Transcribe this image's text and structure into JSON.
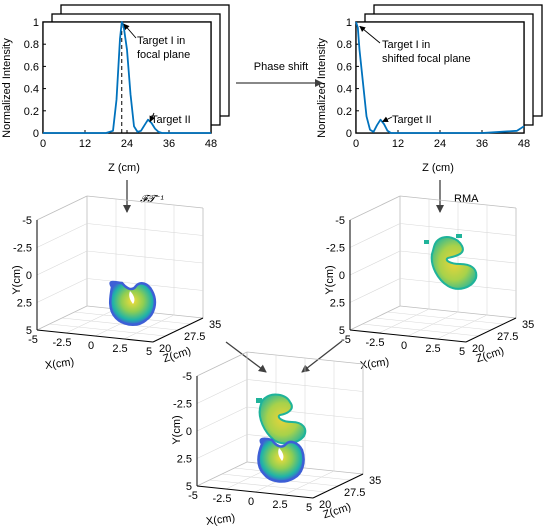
{
  "colors": {
    "line": "#0072bd",
    "arrow": "#404040",
    "voxel_low": "#3a5bd9",
    "voxel_mid": "#20b2aa",
    "voxel_high": "#e8d23a"
  },
  "arrows": {
    "phase_shift": "Phase shift",
    "inverse_ft": "𝓕𝓣⁻¹",
    "rma": "RMA"
  },
  "chart_data": [
    {
      "type": "line",
      "title": "",
      "xlabel": "Z (cm)",
      "ylabel": "Normalized Intensity",
      "xlim": [
        0,
        48
      ],
      "ylim": [
        0,
        1
      ],
      "xticks": [
        "0",
        "12",
        "24",
        "36",
        "48"
      ],
      "yticks": [
        "0",
        "0.2",
        "0.4",
        "0.6",
        "0.8",
        "1"
      ],
      "x": [
        0,
        12,
        18,
        20,
        21,
        22,
        22.5,
        23,
        24,
        25,
        26,
        27,
        28,
        29,
        30,
        31,
        32,
        33,
        34,
        36,
        48
      ],
      "y": [
        0,
        0,
        0,
        0.02,
        0.3,
        0.85,
        1.0,
        0.97,
        0.75,
        0.35,
        0.06,
        0.01,
        0.02,
        0.07,
        0.12,
        0.09,
        0.04,
        0.01,
        0,
        0,
        0
      ],
      "annotations": [
        {
          "text": "Target I in",
          "text2": "focal plane",
          "x": 22.5,
          "y": 1.0
        },
        {
          "text": "Target II",
          "x": 30,
          "y": 0.12
        }
      ],
      "dashed_line_x": 22.5
    },
    {
      "type": "line",
      "title": "",
      "xlabel": "Z (cm)",
      "ylabel": "Normalized Intensity",
      "xlim": [
        0,
        48
      ],
      "ylim": [
        0,
        1
      ],
      "xticks": [
        "0",
        "12",
        "24",
        "36",
        "48"
      ],
      "yticks": [
        "0",
        "0.2",
        "0.4",
        "0.6",
        "0.8",
        "1"
      ],
      "x": [
        0,
        0.5,
        1,
        2,
        3,
        4,
        5,
        6,
        7,
        8,
        9,
        10,
        12,
        24,
        36,
        46,
        48
      ],
      "y": [
        1.0,
        0.95,
        0.75,
        0.45,
        0.15,
        0.03,
        0.01,
        0.07,
        0.12,
        0.08,
        0.02,
        0,
        0,
        0,
        0,
        0.02,
        0.06
      ],
      "annotations": [
        {
          "text": "Target I in",
          "text2": "shifted focal plane",
          "x": 0.5,
          "y": 0.98
        },
        {
          "text": "Target II",
          "x": 7,
          "y": 0.12
        }
      ]
    }
  ],
  "plots3d": [
    {
      "xlabel": "X(cm)",
      "ylabel": "Y(cm)",
      "zlabel": "Z(cm)",
      "xticks": [
        "-5",
        "-2.5",
        "0",
        "2.5",
        "5"
      ],
      "yticks": [
        "-5",
        "-2.5",
        "0",
        "2.5",
        "5"
      ],
      "zticks": [
        "20",
        "27.5",
        "35"
      ]
    },
    {
      "xlabel": "X(cm)",
      "ylabel": "Y(cm)",
      "zlabel": "Z(cm)",
      "xticks": [
        "-5",
        "-2.5",
        "0",
        "2.5",
        "5"
      ],
      "yticks": [
        "-5",
        "-2.5",
        "0",
        "2.5",
        "5"
      ],
      "zticks": [
        "20",
        "27.5",
        "35"
      ]
    },
    {
      "xlabel": "X(cm)",
      "ylabel": "Y(cm)",
      "zlabel": "Z(cm)",
      "xticks": [
        "-5",
        "-2.5",
        "0",
        "2.5",
        "5"
      ],
      "yticks": [
        "-5",
        "-2.5",
        "0",
        "2.5",
        "5"
      ],
      "zticks": [
        "20",
        "27.5",
        "35"
      ]
    }
  ]
}
